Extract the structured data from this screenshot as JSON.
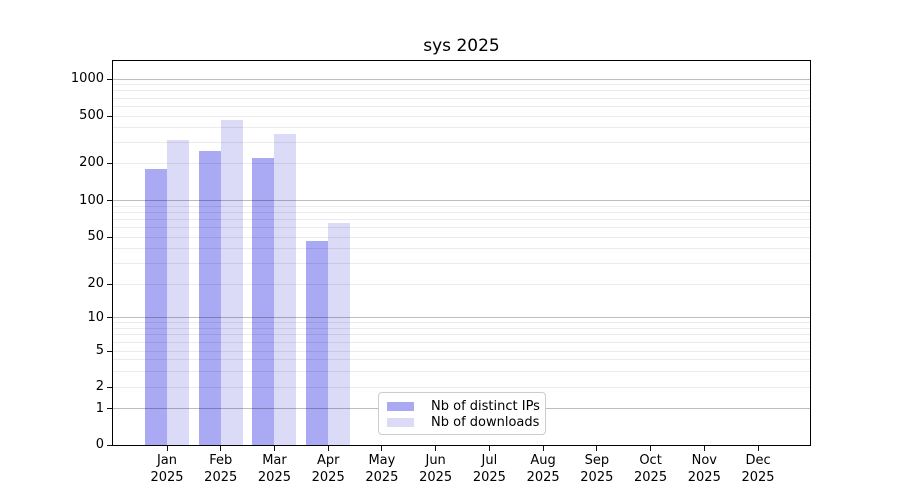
{
  "chart_data": {
    "type": "bar",
    "title": "sys 2025",
    "categories": [
      "Jan",
      "Feb",
      "Mar",
      "Apr",
      "May",
      "Jun",
      "Jul",
      "Aug",
      "Sep",
      "Oct",
      "Nov",
      "Dec"
    ],
    "year_label": "2025",
    "series": [
      {
        "name": "Nb of distinct IPs",
        "color": "#a9a9f4",
        "values": [
          180,
          255,
          220,
          46,
          0,
          0,
          0,
          0,
          0,
          0,
          0,
          0
        ]
      },
      {
        "name": "Nb of downloads",
        "color": "#dbdbf8",
        "values": [
          315,
          465,
          350,
          65,
          0,
          0,
          0,
          0,
          0,
          0,
          0,
          0
        ]
      }
    ],
    "y_axis": {
      "scale": "symlog",
      "tick_values": [
        0,
        1,
        2,
        5,
        10,
        20,
        50,
        100,
        200,
        500,
        1000
      ],
      "tick_labels": [
        "0",
        "1",
        "2",
        "5",
        "10",
        "20",
        "50",
        "100",
        "200",
        "500",
        "1000"
      ],
      "ylim": [
        0,
        1400
      ]
    },
    "legend": {
      "entries": [
        "Nb of distinct IPs",
        "Nb of downloads"
      ],
      "position": "lower-center"
    },
    "grid": {
      "enabled": true,
      "major_color": "#c3c3c3",
      "minor_color": "#ececec"
    }
  }
}
